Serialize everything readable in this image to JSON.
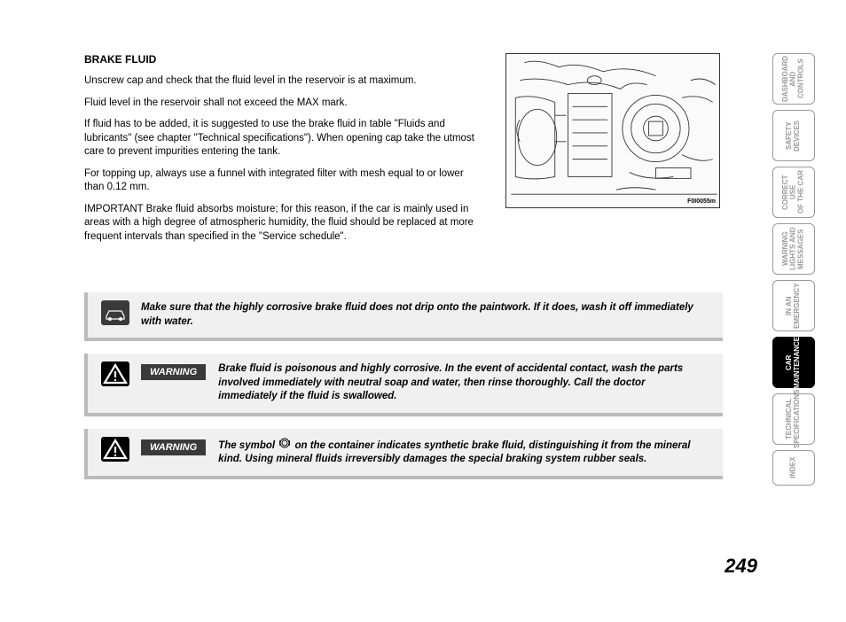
{
  "section": {
    "title": "BRAKE FLUID",
    "para1": "Unscrew cap and check that the fluid level in the reservoir is at maximum.",
    "para2": "Fluid level in the reservoir shall not exceed the MAX mark.",
    "para3": "If fluid has to be added, it is suggested to use the brake fluid in table \"Fluids and lubricants\" (see chapter \"Technical specifications\"). When opening cap take the utmost care to prevent impurities entering the tank.",
    "para4": "For topping up, always use a funnel with integrated filter with mesh equal to or lower than 0.12 mm.",
    "para5": "IMPORTANT Brake fluid absorbs moisture; for this reason, if the car is mainly used in areas with a high degree of atmospheric humidity, the fluid should be replaced at more frequent intervals than specified in the \"Service schedule\"."
  },
  "diagram_label": "F0I0055m",
  "notices": {
    "paintwork": "Make sure that the highly corrosive brake fluid does not drip onto the paintwork. If it does, wash it off immediately with water.",
    "warning_label": "WARNING",
    "poisonous": "Brake fluid is poisonous and highly corrosive. In the event of accidental contact, wash the parts involved immediately with neutral soap and water, then rinse thoroughly. Call the doctor immediately if the fluid is swallowed.",
    "synthetic_pre": "The symbol ",
    "synthetic_post": " on the container indicates synthetic brake fluid, distinguishing it from the mineral kind. Using mineral fluids irreversibly damages the special braking system rubber seals."
  },
  "tabs": [
    {
      "label": "DASHBOARD\nAND\nCONTROLS",
      "active": false
    },
    {
      "label": "SAFETY\nDEVICES",
      "active": false
    },
    {
      "label": "CORRECT USE\nOF THE CAR",
      "active": false
    },
    {
      "label": "WARNING\nLIGHTS AND\nMESSAGES",
      "active": false
    },
    {
      "label": "IN AN\nEMERGENCY",
      "active": false
    },
    {
      "label": "CAR\nMAINTENANCE",
      "active": true
    },
    {
      "label": "TECHNICAL\nSPECIFICATIONS",
      "active": false
    },
    {
      "label": "INDEX",
      "active": false
    }
  ],
  "page_number": "249",
  "colors": {
    "text": "#000000",
    "inactive_tab": "#999999",
    "notice_bg": "#f0f0f0",
    "notice_border": "#bbbbbb",
    "warning_bg": "#3a3a3a"
  }
}
